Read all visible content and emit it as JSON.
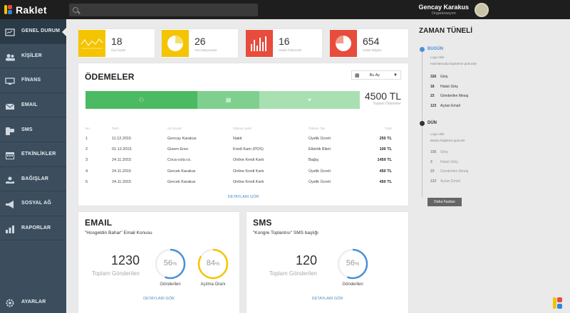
{
  "app": {
    "name": "Raklet"
  },
  "search": {
    "placeholder": ""
  },
  "user": {
    "name": "Gencay Karakus",
    "role": "Organizasyon"
  },
  "nav": [
    {
      "label": "GENEL DURUM",
      "icon": "dashboard-icon"
    },
    {
      "label": "KİŞİLER",
      "icon": "people-icon"
    },
    {
      "label": "FİNANS",
      "icon": "finance-icon"
    },
    {
      "label": "EMAIL",
      "icon": "email-icon"
    },
    {
      "label": "SMS",
      "icon": "sms-icon"
    },
    {
      "label": "ETKİNLİKLER",
      "icon": "calendar-icon"
    },
    {
      "label": "BAĞIŞLAR",
      "icon": "donation-icon"
    },
    {
      "label": "SOSYAL AĞ",
      "icon": "megaphone-icon"
    },
    {
      "label": "RAPORLAR",
      "icon": "chart-icon"
    }
  ],
  "settings": {
    "label": "AYARLAR"
  },
  "stats": [
    {
      "value": "18",
      "label": "Üye kişiler",
      "color": "#f5c400"
    },
    {
      "value": "26",
      "label": "Yeni Başvurular",
      "color": "#f5c400"
    },
    {
      "value": "16",
      "label": "Hatalı Ödemeler",
      "color": "#e74c3c"
    },
    {
      "value": "654",
      "label": "Hatalı Bilgiler",
      "color": "#e74c3c"
    }
  ],
  "payments": {
    "title": "ÖDEMELER",
    "filter": "Bu Ay",
    "total": "4500 TL",
    "total_label": "Toplam Ödemeler",
    "headers": [
      "No",
      "Tarih",
      "Ad Soyad",
      "Ödeme Şekli",
      "Ödeme Tipi",
      "Tutar"
    ],
    "rows": [
      [
        "1",
        "11.12.2015",
        "Gencay Karakus",
        "Nakit",
        "Üyelik Ücreti",
        "250 TL"
      ],
      [
        "2",
        "01.12.2015",
        "Gizem Eren",
        "Kredi Kartı (POS)",
        "Etkinlik Bileti",
        "100 TL"
      ],
      [
        "3",
        "24.11.2015",
        "Coca-cola co.",
        "Online Kredi Kartı",
        "Bağış",
        "1450 TL"
      ],
      [
        "4",
        "24.11.2015",
        "Gercek Karakus",
        "Online Kredi Kartı",
        "Üyelik Ücreti",
        "450 TL"
      ],
      [
        "5",
        "24.11.2015",
        "Gercek Karakus",
        "Online Kredi Kartı",
        "Üyelik Ücreti",
        "450 TL"
      ]
    ],
    "link": "DETAYLARI GÖR"
  },
  "email": {
    "title": "EMAIL",
    "subtitle": "\"Hosgeldin Bahar\" Email Konusu",
    "total": "1230",
    "total_label": "Toplam Gönderilen",
    "d1": {
      "value": "56",
      "unit": "%",
      "label": "Gönderilen",
      "percent": 56
    },
    "d2": {
      "value": "84",
      "unit": "%",
      "label": "Açılma Oranı",
      "percent": 84
    },
    "link": "DETAYLARI GÖR"
  },
  "sms": {
    "title": "SMS",
    "subtitle": "\"Kongre Toplantısı\" SMS başlığı",
    "total": "120",
    "total_label": "Toplam Gönderilen",
    "d1": {
      "value": "56",
      "unit": "%",
      "label": "Gönderilen",
      "percent": 56
    },
    "link": "DETAYLARI GÖR"
  },
  "timeline": {
    "title": "ZAMAN TÜNELİ",
    "today": {
      "label": "BUGÜN",
      "sub1": "Logo ekle",
      "sub2": "Hatırlatmada kaybetme günüvde",
      "items": [
        [
          "326",
          "Giriş"
        ],
        [
          "18",
          "Hatalı Giriş"
        ],
        [
          "23",
          "Gönderilen Mesaj"
        ],
        [
          "123",
          "Açılan Email"
        ]
      ]
    },
    "yesterday": {
      "label": "DÜN",
      "sub1": "Logo ekle",
      "sub2": "Banka bilgilerini günvele",
      "items": [
        [
          "156",
          "Giriş"
        ],
        [
          "3",
          "Hatalı Giriş"
        ],
        [
          "23",
          "Gönderilen Mesaj"
        ],
        [
          "123",
          "Açılan Email"
        ]
      ]
    },
    "more": "Daha Fazlası"
  }
}
